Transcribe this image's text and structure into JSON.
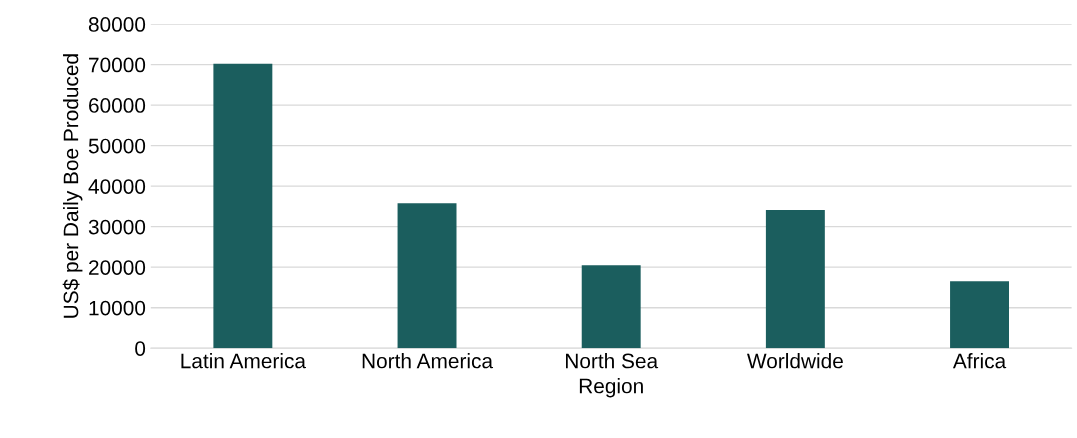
{
  "chart_data": {
    "type": "bar",
    "xlabel": "Region",
    "ylabel": "US$ per Daily Boe Produced",
    "categories": [
      "Latin America",
      "North America",
      "North Sea",
      "Worldwide",
      "Africa"
    ],
    "values": [
      70200,
      35800,
      20500,
      34100,
      16500
    ],
    "color": "#1b5e5e",
    "ylim": [
      0,
      80000
    ],
    "yticks": [
      0,
      10000,
      20000,
      30000,
      40000,
      50000,
      60000,
      70000,
      80000
    ],
    "grid": "y"
  }
}
